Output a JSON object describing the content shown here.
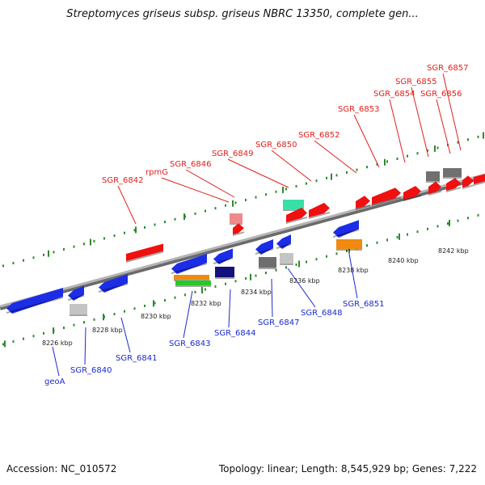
{
  "title": "Streptomyces griseus subsp. griseus NBRC 13350, complete gen...",
  "footer": {
    "accession": "Accession: NC_010572",
    "topology": "Topology: linear; Length: 8,545,929 bp; Genes: 7,222"
  },
  "colors": {
    "top_label": "#e0201c",
    "bottom_label": "#1a2ad0",
    "backbone": "#9a9a9a",
    "tick": "#2d8a2d"
  },
  "kbp_labels": [
    "8226 kbp",
    "8228 kbp",
    "8230 kbp",
    "8232 kbp",
    "8234 kbp",
    "8236 kbp",
    "8238 kbp",
    "8240 kbp",
    "8242 kbp"
  ],
  "top_genes": [
    "SGR_6842",
    "rpmG",
    "SGR_6846",
    "SGR_6849",
    "SGR_6850",
    "SGR_6852",
    "SGR_6853",
    "SGR_6854",
    "SGR_6855",
    "SGR_6856",
    "SGR_6857"
  ],
  "bottom_genes": [
    "geoA",
    "SGR_6840",
    "SGR_6841",
    "SGR_6843",
    "SGR_6844",
    "SGR_6847",
    "SGR_6848",
    "SGR_6851"
  ]
}
